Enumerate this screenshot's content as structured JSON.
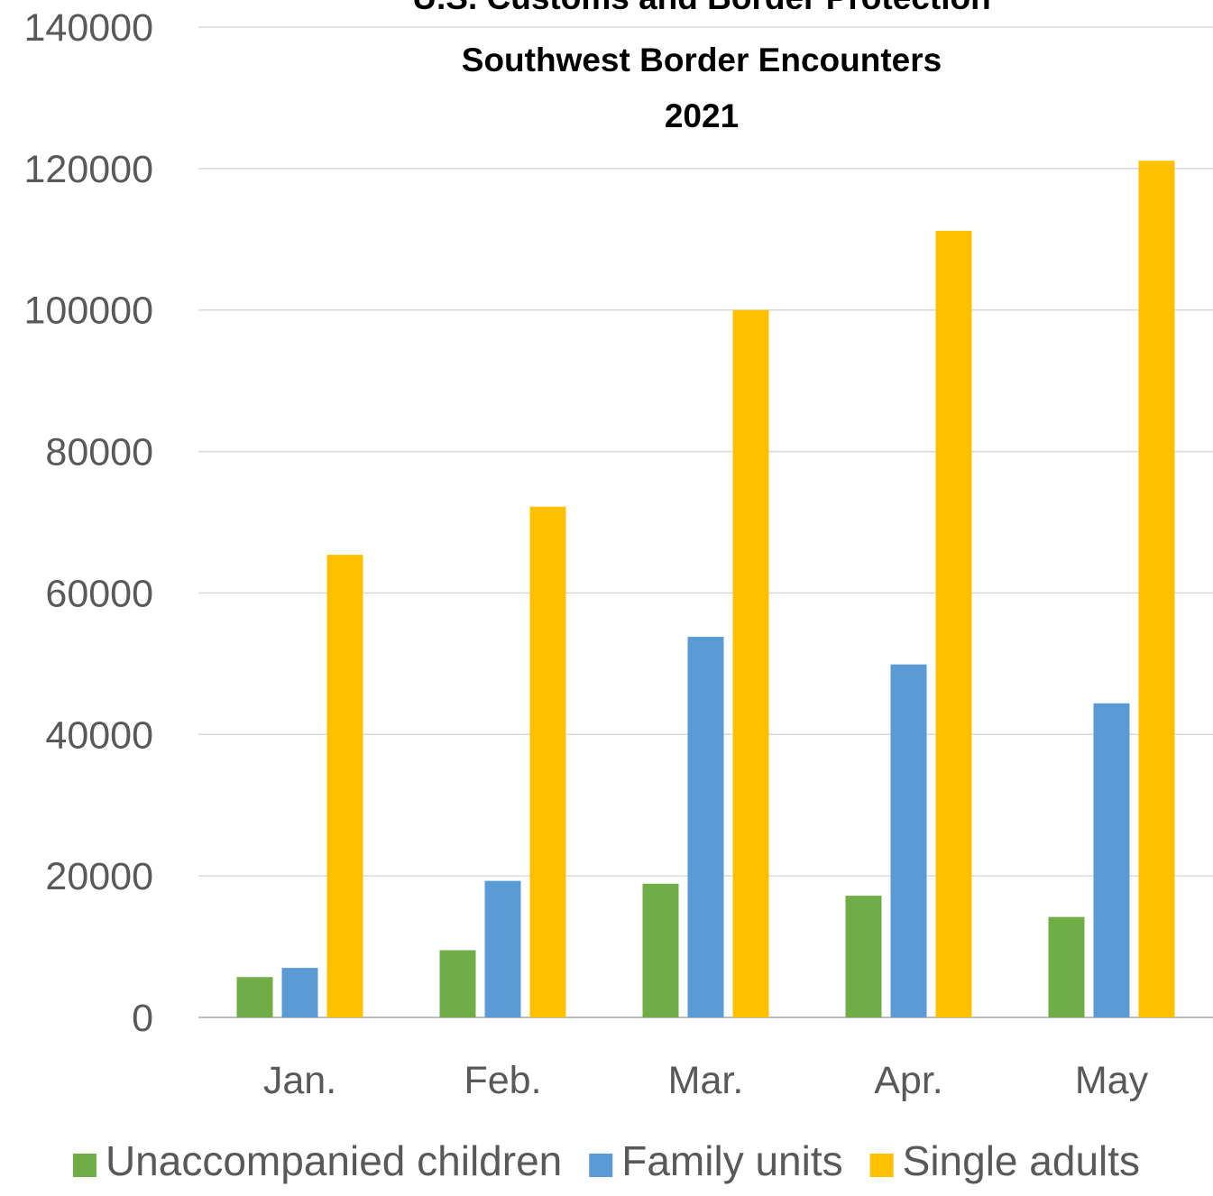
{
  "chart_data": {
    "type": "bar",
    "title_lines": [
      "U.S. Customs and Border Protection",
      "Southwest Border Encounters",
      "2021"
    ],
    "categories": [
      "Jan.",
      "Feb.",
      "Mar.",
      "Apr.",
      "May"
    ],
    "series": [
      {
        "name": "Unaccompanied children",
        "color": "#70AD47",
        "values": [
          5700,
          9500,
          18900,
          17200,
          14200
        ]
      },
      {
        "name": "Family units",
        "color": "#5B9BD5",
        "values": [
          7000,
          19300,
          53800,
          49900,
          44400
        ]
      },
      {
        "name": "Single adults",
        "color": "#FFC000",
        "values": [
          65400,
          72200,
          100000,
          111200,
          121100
        ]
      }
    ],
    "yticks": [
      "0",
      "20000",
      "40000",
      "60000",
      "80000",
      "100000",
      "120000",
      "140000"
    ],
    "ylim": [
      0,
      140000
    ],
    "grid": true,
    "legend": "bottom"
  }
}
